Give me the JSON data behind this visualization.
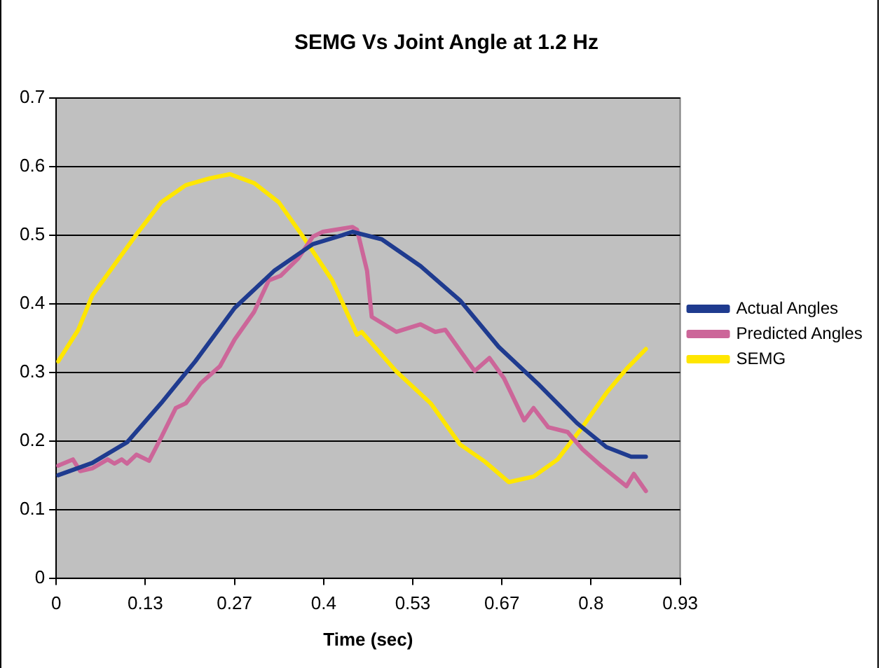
{
  "chart_data": {
    "type": "line",
    "title": "SEMG Vs Joint Angle at 1.2 Hz",
    "xlabel": "Time (sec)",
    "xlim": [
      0,
      0.9333
    ],
    "xticks": [
      0,
      {
        "value": 0.1333,
        "label": "0.13"
      },
      {
        "value": 0.2667,
        "label": "0.27"
      },
      {
        "value": 0.4,
        "label": "0.4"
      },
      {
        "value": 0.5333,
        "label": "0.53"
      },
      {
        "value": 0.6667,
        "label": "0.67"
      },
      {
        "value": 0.8,
        "label": "0.8"
      },
      {
        "value": 0.9333,
        "label": "0.93"
      }
    ],
    "ylim": [
      0,
      0.7
    ],
    "yticks": [
      0,
      0.1,
      0.2,
      0.3,
      0.4,
      0.5,
      0.6,
      0.7
    ],
    "grid": "y",
    "legend": "right",
    "marker": "none",
    "line_style": "solid",
    "series": [
      {
        "name": "Actual Angles",
        "color": "#1f3b8f",
        "x": [
          0.003,
          0.054,
          0.106,
          0.157,
          0.208,
          0.267,
          0.326,
          0.384,
          0.428,
          0.443,
          0.487,
          0.545,
          0.604,
          0.662,
          0.721,
          0.779,
          0.823,
          0.86,
          0.882
        ],
        "values": [
          0.15,
          0.168,
          0.198,
          0.255,
          0.316,
          0.394,
          0.448,
          0.487,
          0.5,
          0.505,
          0.494,
          0.455,
          0.405,
          0.337,
          0.283,
          0.226,
          0.191,
          0.177,
          0.177
        ]
      },
      {
        "name": "Predicted Angles",
        "color": "#cc6699",
        "x": [
          0.003,
          0.025,
          0.036,
          0.054,
          0.077,
          0.087,
          0.098,
          0.106,
          0.12,
          0.139,
          0.157,
          0.179,
          0.194,
          0.216,
          0.245,
          0.267,
          0.296,
          0.318,
          0.336,
          0.362,
          0.384,
          0.399,
          0.443,
          0.45,
          0.465,
          0.472,
          0.509,
          0.545,
          0.567,
          0.582,
          0.626,
          0.648,
          0.67,
          0.7,
          0.714,
          0.736,
          0.765,
          0.787,
          0.816,
          0.853,
          0.864,
          0.882
        ],
        "values": [
          0.164,
          0.173,
          0.156,
          0.16,
          0.173,
          0.167,
          0.173,
          0.167,
          0.18,
          0.171,
          0.205,
          0.248,
          0.255,
          0.284,
          0.309,
          0.348,
          0.388,
          0.434,
          0.441,
          0.466,
          0.498,
          0.505,
          0.512,
          0.508,
          0.448,
          0.381,
          0.359,
          0.37,
          0.359,
          0.362,
          0.302,
          0.321,
          0.291,
          0.23,
          0.248,
          0.22,
          0.213,
          0.188,
          0.163,
          0.134,
          0.152,
          0.127
        ]
      },
      {
        "name": "SEMG",
        "color": "#ffe600",
        "x": [
          0.003,
          0.033,
          0.054,
          0.091,
          0.12,
          0.157,
          0.194,
          0.23,
          0.26,
          0.296,
          0.333,
          0.369,
          0.413,
          0.45,
          0.457,
          0.508,
          0.56,
          0.604,
          0.641,
          0.677,
          0.714,
          0.75,
          0.787,
          0.823,
          0.853,
          0.882
        ],
        "values": [
          0.316,
          0.362,
          0.412,
          0.462,
          0.501,
          0.548,
          0.573,
          0.583,
          0.589,
          0.576,
          0.548,
          0.498,
          0.434,
          0.355,
          0.359,
          0.302,
          0.255,
          0.195,
          0.17,
          0.14,
          0.148,
          0.173,
          0.22,
          0.27,
          0.305,
          0.334
        ]
      }
    ]
  }
}
